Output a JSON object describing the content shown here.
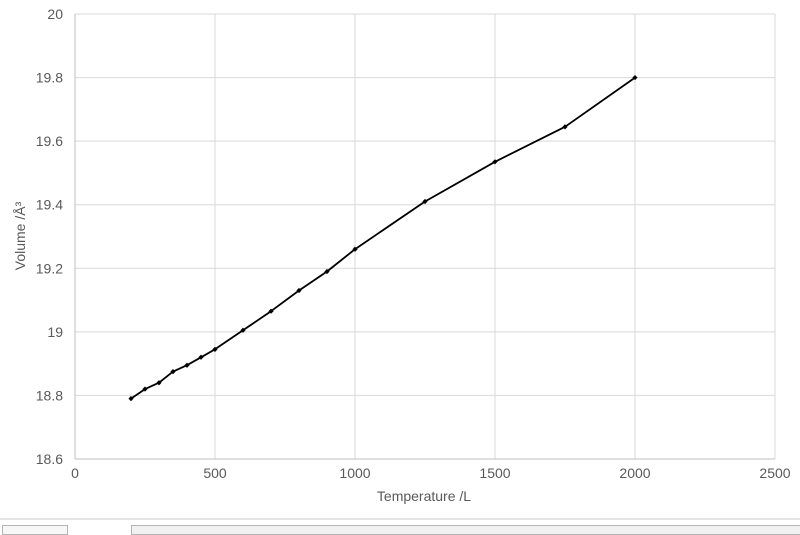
{
  "chart_data": {
    "type": "line",
    "title": "",
    "xlabel": "Temperature /L",
    "ylabel": "Volume /Å³",
    "x": [
      200,
      250,
      300,
      350,
      400,
      450,
      500,
      600,
      700,
      800,
      900,
      1000,
      1250,
      1500,
      1750,
      2000
    ],
    "series": [
      {
        "name": "Volume",
        "values": [
          18.79,
          18.82,
          18.84,
          18.875,
          18.895,
          18.92,
          18.945,
          19.005,
          19.065,
          19.13,
          19.19,
          19.26,
          19.41,
          19.535,
          19.645,
          19.8
        ]
      }
    ],
    "xlim": [
      0,
      2500
    ],
    "ylim": [
      18.6,
      20
    ],
    "x_tick_values": [
      0,
      500,
      1000,
      1500,
      2000,
      2500
    ],
    "x_tick_labels": [
      "0",
      "500",
      "1000",
      "1500",
      "2000",
      "2500"
    ],
    "y_tick_values": [
      18.6,
      18.8,
      19,
      19.2,
      19.4,
      19.6,
      19.8,
      20
    ],
    "y_tick_labels": [
      "18.6",
      "18.8",
      "19",
      "19.2",
      "19.4",
      "19.6",
      "19.8",
      "20"
    ],
    "grid": true,
    "legend": "none",
    "marker": "diamond",
    "colors": {
      "series_line": "#000000",
      "gridline": "#d9d9d9",
      "axis_line": "#bfbfbf",
      "labels": "#595959",
      "background": "#ffffff"
    }
  }
}
